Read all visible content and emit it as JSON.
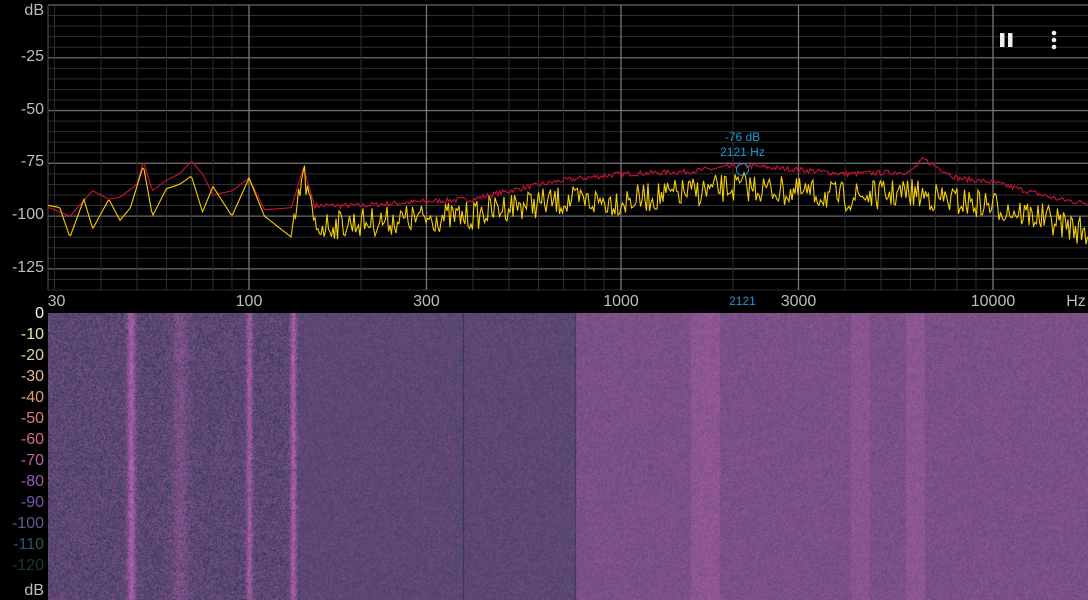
{
  "toolbar": {
    "pause_icon": "pause-icon",
    "menu_icon": "more-vert-icon"
  },
  "colors": {
    "peak_hold": "#d0103a",
    "current": "#f5d000",
    "marker": "#1a9ad6",
    "grid": "#3a3a3a",
    "grid_major": "#777777"
  },
  "chart_data": {
    "type": "line",
    "xscale": "log",
    "xlim": [
      29,
      18000
    ],
    "ylim": [
      -135,
      0
    ],
    "ylabel": "dB",
    "xlabel": "Hz",
    "yticks": [
      "-25",
      "-50",
      "-75",
      "-100",
      "-125"
    ],
    "ytick_values": [
      -25,
      -50,
      -75,
      -100,
      -125
    ],
    "xticks": [
      "30",
      "100",
      "300",
      "1000",
      "3000",
      "10000"
    ],
    "xtick_values": [
      30,
      100,
      300,
      1000,
      3000,
      10000
    ],
    "grid": true,
    "series": [
      {
        "key": "peak_hold",
        "x": [
          29,
          33,
          38,
          42,
          45,
          50,
          52,
          55,
          60,
          65,
          70,
          75,
          80,
          90,
          100,
          110,
          130,
          140,
          150,
          200,
          300,
          400,
          500,
          700,
          1000,
          1500,
          2121,
          3000,
          4000,
          6000,
          6500,
          8000,
          10000,
          15000,
          18000
        ],
        "y": [
          -96,
          -100,
          -88,
          -92,
          -91,
          -85,
          -74,
          -88,
          -83,
          -80,
          -74,
          -80,
          -90,
          -88,
          -82,
          -97,
          -96,
          -77,
          -95,
          -95,
          -93,
          -92,
          -88,
          -83,
          -80,
          -79,
          -76,
          -78,
          -80,
          -79,
          -73,
          -82,
          -84,
          -92,
          -94
        ]
      },
      {
        "key": "current",
        "x": [
          29,
          31,
          33,
          36,
          38,
          42,
          45,
          48,
          52,
          55,
          60,
          65,
          70,
          75,
          80,
          90,
          100,
          110,
          130,
          140,
          150,
          200,
          300,
          400,
          500,
          700,
          1000,
          1500,
          2121,
          3000,
          4000,
          6000,
          8000,
          10000,
          15000,
          18000
        ],
        "y": [
          -95,
          -96,
          -110,
          -92,
          -106,
          -92,
          -102,
          -96,
          -76,
          -100,
          -87,
          -85,
          -81,
          -98,
          -86,
          -100,
          -82,
          -100,
          -110,
          -76,
          -102,
          -100,
          -98,
          -97,
          -92,
          -90,
          -90,
          -86,
          -83,
          -86,
          -88,
          -86,
          -90,
          -92,
          -100,
          -105
        ]
      }
    ],
    "marker": {
      "db_label": "-76 dB",
      "hz_label": "2121 Hz",
      "axis_label": "2121",
      "freq": 2121,
      "db": -76
    }
  },
  "spectrogram": {
    "colorbar_labels": [
      "0",
      "-10",
      "-20",
      "-30",
      "-40",
      "-50",
      "-60",
      "-70",
      "-80",
      "-90",
      "-100",
      "-110",
      "-120"
    ],
    "colorbar_colors": [
      "#ffffff",
      "#e9e6b0",
      "#e2d49a",
      "#e0b890",
      "#e59a7c",
      "#e07f82",
      "#d66a95",
      "#c261a7",
      "#9e5bb5",
      "#7a55b0",
      "#5a5a9c",
      "#2f5566",
      "#1c3a2c"
    ],
    "unit": "dB"
  }
}
